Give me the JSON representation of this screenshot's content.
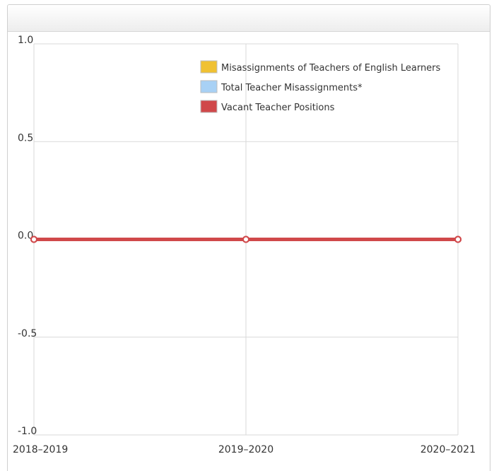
{
  "panel": {
    "header_title": ""
  },
  "chart_data": {
    "type": "line",
    "categories": [
      "2018–2019",
      "2019–2020",
      "2020–2021"
    ],
    "y_ticks": [
      "1.0",
      "0.5",
      "0.0",
      "-0.5",
      "-1.0"
    ],
    "ylim": [
      -1.0,
      1.0
    ],
    "grid": true,
    "legend_position": "top-right",
    "series": [
      {
        "name": "Misassignments of Teachers of English Learners",
        "values": [
          0,
          0,
          0
        ],
        "color": "#f0c132"
      },
      {
        "name": "Total Teacher Misassignments*",
        "values": [
          0,
          0,
          0
        ],
        "color": "#a8d1f5"
      },
      {
        "name": "Vacant Teacher Positions",
        "values": [
          0,
          0,
          0
        ],
        "color": "#d0484a"
      }
    ]
  }
}
